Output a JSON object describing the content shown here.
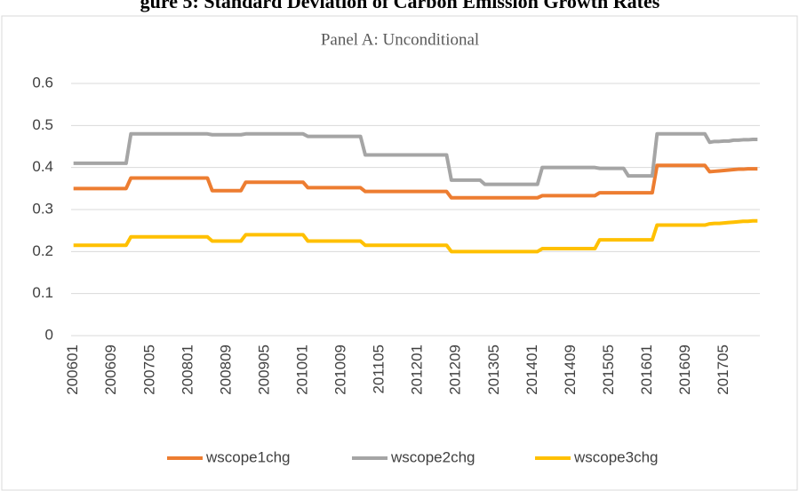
{
  "header": "gure 5: Standard Deviation of Carbon Emission Growth Rates",
  "chart_data": {
    "type": "line",
    "title": "Panel A: Unconditional",
    "categories": [
      "200601",
      null,
      null,
      null,
      null,
      null,
      null,
      null,
      "200609",
      null,
      null,
      null,
      null,
      null,
      null,
      null,
      "200705",
      null,
      null,
      null,
      null,
      null,
      null,
      null,
      "200801",
      null,
      null,
      null,
      null,
      null,
      null,
      null,
      "200809",
      null,
      null,
      null,
      null,
      null,
      null,
      null,
      "200905",
      null,
      null,
      null,
      null,
      null,
      null,
      null,
      "201001",
      null,
      null,
      null,
      null,
      null,
      null,
      null,
      "201009",
      null,
      null,
      null,
      null,
      null,
      null,
      null,
      "201105",
      null,
      null,
      null,
      null,
      null,
      null,
      null,
      "201201",
      null,
      null,
      null,
      null,
      null,
      null,
      null,
      "201209",
      null,
      null,
      null,
      null,
      null,
      null,
      null,
      "201305",
      null,
      null,
      null,
      null,
      null,
      null,
      null,
      "201401",
      null,
      null,
      null,
      null,
      null,
      null,
      null,
      "201409",
      null,
      null,
      null,
      null,
      null,
      null,
      null,
      "201505",
      null,
      null,
      null,
      null,
      null,
      null,
      null,
      "201601",
      null,
      null,
      null,
      null,
      null,
      null,
      null,
      "201609",
      null,
      null,
      null,
      null,
      null,
      null,
      null,
      "201705",
      null,
      null,
      null,
      null,
      null,
      null,
      null
    ],
    "series": [
      {
        "name": "wscope1chg",
        "color": "#ed7d31",
        "values": [
          0.35,
          0.35,
          0.35,
          0.35,
          0.35,
          0.35,
          0.35,
          0.35,
          0.35,
          0.35,
          0.35,
          0.35,
          0.375,
          0.375,
          0.375,
          0.375,
          0.375,
          0.375,
          0.375,
          0.375,
          0.375,
          0.375,
          0.375,
          0.375,
          0.375,
          0.375,
          0.375,
          0.375,
          0.375,
          0.345,
          0.345,
          0.345,
          0.345,
          0.345,
          0.345,
          0.345,
          0.365,
          0.365,
          0.365,
          0.365,
          0.365,
          0.365,
          0.365,
          0.365,
          0.365,
          0.365,
          0.365,
          0.365,
          0.365,
          0.352,
          0.352,
          0.352,
          0.352,
          0.352,
          0.352,
          0.352,
          0.352,
          0.352,
          0.352,
          0.352,
          0.352,
          0.343,
          0.343,
          0.343,
          0.343,
          0.343,
          0.343,
          0.343,
          0.343,
          0.343,
          0.343,
          0.343,
          0.343,
          0.343,
          0.343,
          0.343,
          0.343,
          0.343,
          0.343,
          0.328,
          0.328,
          0.328,
          0.328,
          0.328,
          0.328,
          0.328,
          0.328,
          0.328,
          0.328,
          0.328,
          0.328,
          0.328,
          0.328,
          0.328,
          0.328,
          0.328,
          0.328,
          0.328,
          0.333,
          0.333,
          0.333,
          0.333,
          0.333,
          0.333,
          0.333,
          0.333,
          0.333,
          0.333,
          0.333,
          0.333,
          0.34,
          0.34,
          0.34,
          0.34,
          0.34,
          0.34,
          0.34,
          0.34,
          0.34,
          0.34,
          0.34,
          0.34,
          0.405,
          0.405,
          0.405,
          0.405,
          0.405,
          0.405,
          0.405,
          0.405,
          0.405,
          0.405,
          0.405,
          0.39,
          0.391,
          0.392,
          0.393,
          0.394,
          0.395,
          0.396,
          0.396,
          0.397,
          0.397,
          0.397
        ]
      },
      {
        "name": "wscope2chg",
        "color": "#a5a5a5",
        "values": [
          0.41,
          0.41,
          0.41,
          0.41,
          0.41,
          0.41,
          0.41,
          0.41,
          0.41,
          0.41,
          0.41,
          0.41,
          0.48,
          0.48,
          0.48,
          0.48,
          0.48,
          0.48,
          0.48,
          0.48,
          0.48,
          0.48,
          0.48,
          0.48,
          0.48,
          0.48,
          0.48,
          0.48,
          0.48,
          0.478,
          0.478,
          0.478,
          0.478,
          0.478,
          0.478,
          0.478,
          0.48,
          0.48,
          0.48,
          0.48,
          0.48,
          0.48,
          0.48,
          0.48,
          0.48,
          0.48,
          0.48,
          0.48,
          0.48,
          0.474,
          0.474,
          0.474,
          0.474,
          0.474,
          0.474,
          0.474,
          0.474,
          0.474,
          0.474,
          0.474,
          0.474,
          0.43,
          0.43,
          0.43,
          0.43,
          0.43,
          0.43,
          0.43,
          0.43,
          0.43,
          0.43,
          0.43,
          0.43,
          0.43,
          0.43,
          0.43,
          0.43,
          0.43,
          0.43,
          0.37,
          0.37,
          0.37,
          0.37,
          0.37,
          0.37,
          0.37,
          0.36,
          0.36,
          0.36,
          0.36,
          0.36,
          0.36,
          0.36,
          0.36,
          0.36,
          0.36,
          0.36,
          0.36,
          0.4,
          0.4,
          0.4,
          0.4,
          0.4,
          0.4,
          0.4,
          0.4,
          0.4,
          0.4,
          0.4,
          0.4,
          0.398,
          0.398,
          0.398,
          0.398,
          0.398,
          0.398,
          0.38,
          0.38,
          0.38,
          0.38,
          0.38,
          0.38,
          0.48,
          0.48,
          0.48,
          0.48,
          0.48,
          0.48,
          0.48,
          0.48,
          0.48,
          0.48,
          0.48,
          0.46,
          0.462,
          0.462,
          0.463,
          0.463,
          0.465,
          0.465,
          0.466,
          0.466,
          0.467,
          0.467
        ]
      },
      {
        "name": "wscope3chg",
        "color": "#ffc000",
        "values": [
          0.215,
          0.215,
          0.215,
          0.215,
          0.215,
          0.215,
          0.215,
          0.215,
          0.215,
          0.215,
          0.215,
          0.215,
          0.235,
          0.235,
          0.235,
          0.235,
          0.235,
          0.235,
          0.235,
          0.235,
          0.235,
          0.235,
          0.235,
          0.235,
          0.235,
          0.235,
          0.235,
          0.235,
          0.235,
          0.225,
          0.225,
          0.225,
          0.225,
          0.225,
          0.225,
          0.225,
          0.24,
          0.24,
          0.24,
          0.24,
          0.24,
          0.24,
          0.24,
          0.24,
          0.24,
          0.24,
          0.24,
          0.24,
          0.24,
          0.225,
          0.225,
          0.225,
          0.225,
          0.225,
          0.225,
          0.225,
          0.225,
          0.225,
          0.225,
          0.225,
          0.225,
          0.215,
          0.215,
          0.215,
          0.215,
          0.215,
          0.215,
          0.215,
          0.215,
          0.215,
          0.215,
          0.215,
          0.215,
          0.215,
          0.215,
          0.215,
          0.215,
          0.215,
          0.215,
          0.2,
          0.2,
          0.2,
          0.2,
          0.2,
          0.2,
          0.2,
          0.2,
          0.2,
          0.2,
          0.2,
          0.2,
          0.2,
          0.2,
          0.2,
          0.2,
          0.2,
          0.2,
          0.2,
          0.207,
          0.207,
          0.207,
          0.207,
          0.207,
          0.207,
          0.207,
          0.207,
          0.207,
          0.207,
          0.207,
          0.207,
          0.228,
          0.228,
          0.228,
          0.228,
          0.228,
          0.228,
          0.228,
          0.228,
          0.228,
          0.228,
          0.228,
          0.228,
          0.263,
          0.263,
          0.263,
          0.263,
          0.263,
          0.263,
          0.263,
          0.263,
          0.263,
          0.263,
          0.263,
          0.266,
          0.267,
          0.267,
          0.268,
          0.269,
          0.27,
          0.271,
          0.272,
          0.272,
          0.273,
          0.273
        ]
      }
    ],
    "ylim": [
      0,
      0.6
    ],
    "yticks": [
      0,
      0.1,
      0.2,
      0.3,
      0.4,
      0.5,
      0.6
    ],
    "grid": true,
    "legend": "bottom"
  }
}
